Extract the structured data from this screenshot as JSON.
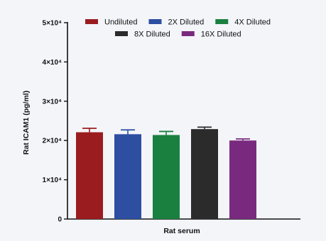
{
  "chart_data": {
    "type": "bar",
    "title": "",
    "xlabel": "Rat serum",
    "ylabel": "Rat ICAM1 (pg/ml)",
    "ylim": [
      0,
      50000
    ],
    "yticks": [
      {
        "value": 0,
        "label": "0"
      },
      {
        "value": 10000,
        "label": "1×10⁴"
      },
      {
        "value": 20000,
        "label": "2×10⁴"
      },
      {
        "value": 30000,
        "label": "3×10⁴"
      },
      {
        "value": 40000,
        "label": "4×10⁴"
      },
      {
        "value": 50000,
        "label": "5×10⁴"
      }
    ],
    "grid": false,
    "legend_position": "top",
    "series": [
      {
        "name": "Undiluted",
        "value": 22100,
        "error": 1000,
        "color": "#9b1c1f"
      },
      {
        "name": "2X Diluted",
        "value": 21600,
        "error": 1100,
        "color": "#2d4ea1"
      },
      {
        "name": "4X Diluted",
        "value": 21400,
        "error": 900,
        "color": "#1a8040"
      },
      {
        "name": "8X Diluted",
        "value": 22900,
        "error": 500,
        "color": "#2b2b2b"
      },
      {
        "name": "16X Diluted",
        "value": 20000,
        "error": 400,
        "color": "#7a2a7e"
      }
    ]
  }
}
